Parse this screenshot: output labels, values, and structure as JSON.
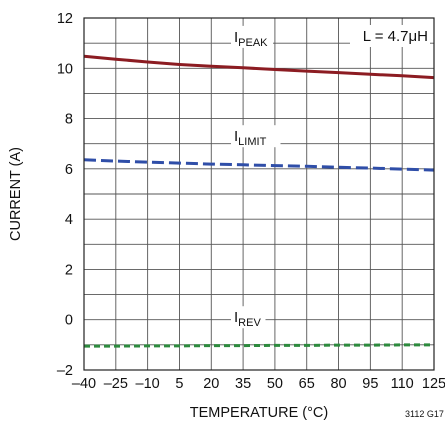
{
  "chart_data": {
    "type": "line",
    "xlabel": "TEMPERATURE (°C)",
    "ylabel": "CURRENT (A)",
    "x_ticks": [
      "–40",
      "–25",
      "–10",
      "5",
      "20",
      "35",
      "50",
      "65",
      "80",
      "95",
      "110",
      "125"
    ],
    "y_ticks": [
      "–2",
      "0",
      "2",
      "4",
      "6",
      "8",
      "10",
      "12"
    ],
    "xlim": [
      -40,
      125
    ],
    "ylim": [
      -2,
      12
    ],
    "grid": true,
    "annotation": "L = 4.7μH",
    "figure_id": "3112 G17",
    "series": [
      {
        "name": "I_PEAK",
        "label_main": "I",
        "label_sub": "PEAK",
        "color": "#8c1c22",
        "style": "solid",
        "x": [
          -40,
          -25,
          -10,
          5,
          20,
          35,
          50,
          65,
          80,
          95,
          110,
          125
        ],
        "y": [
          10.48,
          10.36,
          10.25,
          10.15,
          10.08,
          10.02,
          9.95,
          9.89,
          9.83,
          9.76,
          9.7,
          9.63
        ]
      },
      {
        "name": "I_LIMIT",
        "label_main": "I",
        "label_sub": "LIMIT",
        "color": "#2f4ea8",
        "style": "dashed",
        "x": [
          -40,
          -25,
          -10,
          5,
          20,
          35,
          50,
          65,
          80,
          95,
          110,
          125
        ],
        "y": [
          6.36,
          6.31,
          6.27,
          6.23,
          6.19,
          6.16,
          6.13,
          6.1,
          6.06,
          6.03,
          5.99,
          5.95
        ]
      },
      {
        "name": "I_REV",
        "label_main": "I",
        "label_sub": "REV",
        "color": "#2d8a3e",
        "style": "dashed-short",
        "x": [
          -40,
          -25,
          -10,
          5,
          20,
          35,
          50,
          65,
          80,
          95,
          110,
          125
        ],
        "y": [
          -1.05,
          -1.05,
          -1.04,
          -1.04,
          -1.03,
          -1.03,
          -1.02,
          -1.02,
          -1.01,
          -1.01,
          -1.0,
          -1.0
        ]
      }
    ]
  }
}
